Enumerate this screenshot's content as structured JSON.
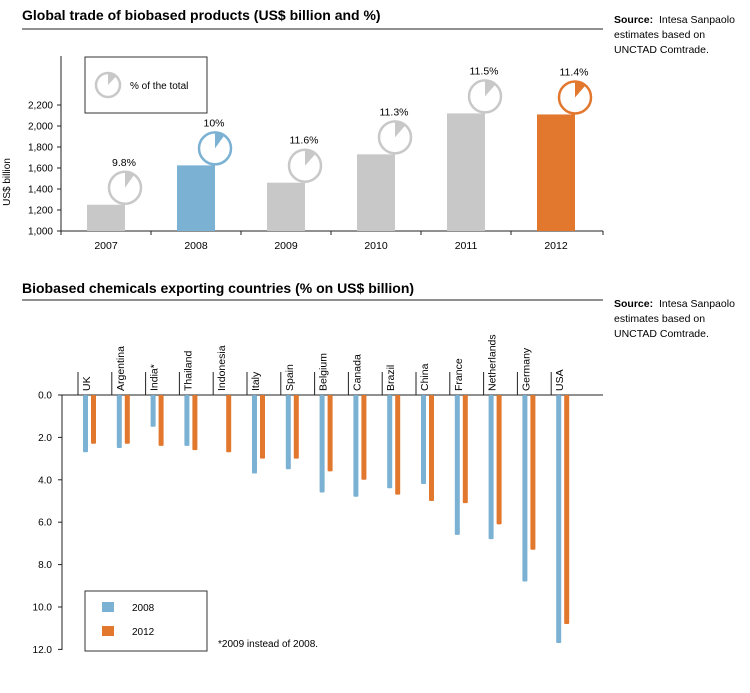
{
  "colors": {
    "grey": "#c8c8c8",
    "blue": "#7bb1d3",
    "orange": "#e2772e",
    "axis": "#222222"
  },
  "chart_data": [
    {
      "type": "bar",
      "title": "Global trade of biobased products (US$ billion and %)",
      "source_bold": "Source:",
      "source_lines": [
        "Intesa Sanpaolo",
        "estimates based on",
        "UNCTAD Comtrade."
      ],
      "ylabel": "US$ billion",
      "ylim": [
        1000,
        2400
      ],
      "yticks": [
        "2,200",
        "2,000",
        "1,800",
        "1,600",
        "1,400",
        "1,200",
        "1,000"
      ],
      "categories": [
        "2007",
        "2008",
        "2009",
        "2010",
        "2011",
        "2012"
      ],
      "values": [
        1250,
        1625,
        1460,
        1730,
        2120,
        2110
      ],
      "share_labels": [
        "9.8%",
        "10%",
        "11.6%",
        "11.3%",
        "11.5%",
        "11.4%"
      ],
      "share_values": [
        9.8,
        10,
        11.6,
        11.3,
        11.5,
        11.4
      ],
      "highlight": {
        "2008": "blue",
        "2012": "orange"
      },
      "legend": {
        "label": "% of the total",
        "placement": "top-left"
      }
    },
    {
      "type": "bar",
      "title": "Biobased chemicals exporting countries (% on US$ billion)",
      "source_bold": "Source:",
      "source_lines": [
        "Intesa Sanpaolo",
        "estimates based on",
        "UNCTAD Comtrade."
      ],
      "ylim": [
        0,
        12
      ],
      "yticks": [
        "0.0",
        "2.0",
        "4.0",
        "6.0",
        "8.0",
        "10.0",
        "12.0"
      ],
      "inverted_y": true,
      "categories": [
        "UK",
        "Argentina",
        "India*",
        "Thailand",
        "Indonesia",
        "Italy",
        "Spain",
        "Belgium",
        "Canada",
        "Brazil",
        "China",
        "France",
        "Netherlands",
        "Germany",
        "USA"
      ],
      "series": [
        {
          "name": "2008",
          "values": [
            2.7,
            2.5,
            1.5,
            2.4,
            null,
            3.7,
            3.5,
            4.6,
            4.8,
            4.4,
            4.2,
            6.6,
            6.8,
            8.8,
            11.7
          ]
        },
        {
          "name": "2012",
          "values": [
            2.3,
            2.3,
            2.4,
            2.6,
            2.7,
            3.0,
            3.0,
            3.6,
            4.0,
            4.7,
            5.0,
            5.1,
            6.1,
            7.3,
            10.8
          ]
        }
      ],
      "legend": {
        "placement": "bottom-left"
      },
      "footnote": "*2009 instead of 2008."
    }
  ]
}
